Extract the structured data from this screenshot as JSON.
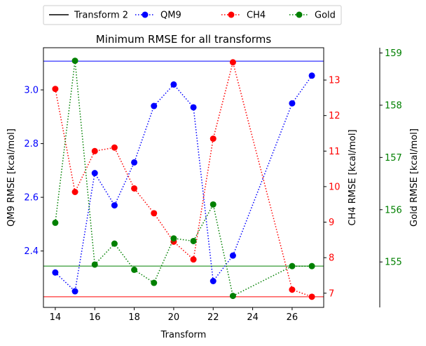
{
  "chart_data": {
    "type": "line",
    "title": "Minimum RMSE for all transforms",
    "xlabel": "Transform",
    "xlim": [
      13.4,
      27.6
    ],
    "xticks": [
      14,
      16,
      18,
      20,
      22,
      24,
      26
    ],
    "legend": {
      "placement": "top-center, above plot",
      "entries": [
        {
          "label": "Transform 2",
          "style": "solid-line",
          "color": "#000000"
        },
        {
          "label": "QM9",
          "style": "dotted-marker",
          "color": "#0000ff"
        },
        {
          "label": "CH4",
          "style": "dotted-marker",
          "color": "#ff0000"
        },
        {
          "label": "Gold",
          "style": "dotted-marker",
          "color": "#008000"
        }
      ]
    },
    "axes": [
      {
        "id": "qm9",
        "ylabel": "QM9 RMSE [kcal/mol]",
        "color": "#0000ff",
        "ylim": [
          2.19,
          3.157
        ],
        "yticks": [
          2.4,
          2.6,
          2.8,
          3.0
        ],
        "ticklabels": [
          "2.4",
          "2.6",
          "2.8",
          "3.0"
        ],
        "position": "left"
      },
      {
        "id": "ch4",
        "ylabel": "CH4 RMSE [kcal/mol]",
        "color": "#ff0000",
        "ylim": [
          6.6,
          13.91
        ],
        "yticks": [
          7,
          8,
          9,
          10,
          11,
          12,
          13
        ],
        "ticklabels": [
          "7",
          "8",
          "9",
          "10",
          "11",
          "12",
          "13"
        ],
        "position": "right"
      },
      {
        "id": "gold",
        "ylabel": "Gold RMSE [kcal/mol]",
        "color": "#008000",
        "ylim": [
          154.13,
          159.1
        ],
        "yticks": [
          155,
          156,
          157,
          158,
          159
        ],
        "ticklabels": [
          "155",
          "156",
          "157",
          "158",
          "159"
        ],
        "position": "right-offset"
      }
    ],
    "series": [
      {
        "name": "QM9",
        "axis": "qm9",
        "color": "#0000ff",
        "linestyle": "dotted",
        "marker": "circle",
        "x": [
          14,
          15,
          16,
          17,
          18,
          19,
          20,
          21,
          22,
          23,
          26,
          27
        ],
        "y": [
          2.32,
          2.25,
          2.69,
          2.57,
          2.73,
          2.94,
          3.02,
          2.935,
          2.288,
          2.383,
          2.95,
          3.053
        ],
        "reference_line": 3.107
      },
      {
        "name": "CH4",
        "axis": "ch4",
        "color": "#ff0000",
        "linestyle": "dotted",
        "marker": "circle",
        "x": [
          14,
          15,
          16,
          17,
          18,
          19,
          20,
          21,
          22,
          23,
          26,
          27
        ],
        "y": [
          12.75,
          9.85,
          11.0,
          11.1,
          9.95,
          9.25,
          8.45,
          7.95,
          11.35,
          13.5,
          7.1,
          6.9
        ],
        "reference_line": 6.9
      },
      {
        "name": "Gold",
        "axis": "gold",
        "color": "#008000",
        "linestyle": "dotted",
        "marker": "circle",
        "x": [
          14,
          15,
          16,
          17,
          18,
          19,
          20,
          21,
          22,
          23,
          26,
          27
        ],
        "y": [
          155.75,
          158.85,
          154.95,
          155.35,
          154.85,
          154.6,
          155.45,
          155.4,
          156.1,
          154.35,
          154.92,
          154.92
        ],
        "reference_line": 154.92
      }
    ]
  }
}
